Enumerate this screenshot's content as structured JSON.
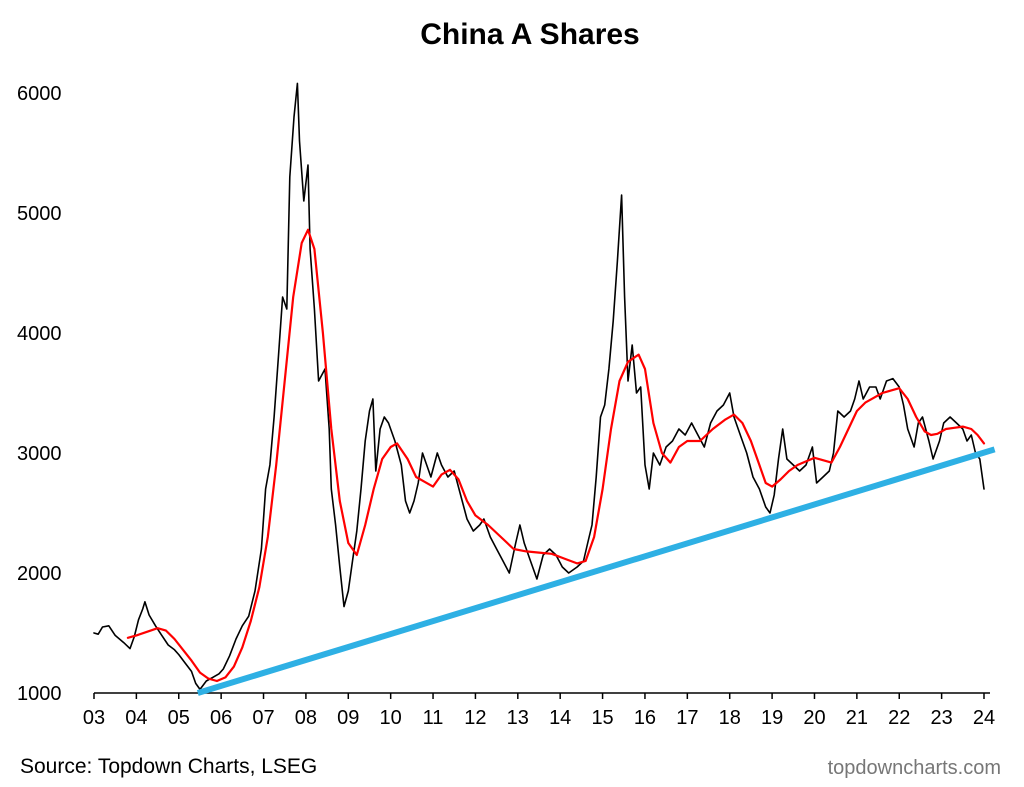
{
  "chart_data": {
    "type": "line",
    "title": "China A Shares",
    "xlabel": "",
    "ylabel": "",
    "xlim": [
      2003,
      2024
    ],
    "ylim": [
      1000,
      6000
    ],
    "x_ticks": [
      {
        "value": 2003,
        "label": "03"
      },
      {
        "value": 2004,
        "label": "04"
      },
      {
        "value": 2005,
        "label": "05"
      },
      {
        "value": 2006,
        "label": "06"
      },
      {
        "value": 2007,
        "label": "07"
      },
      {
        "value": 2008,
        "label": "08"
      },
      {
        "value": 2009,
        "label": "09"
      },
      {
        "value": 2010,
        "label": "10"
      },
      {
        "value": 2011,
        "label": "11"
      },
      {
        "value": 2012,
        "label": "12"
      },
      {
        "value": 2013,
        "label": "13"
      },
      {
        "value": 2014,
        "label": "14"
      },
      {
        "value": 2015,
        "label": "15"
      },
      {
        "value": 2016,
        "label": "16"
      },
      {
        "value": 2017,
        "label": "17"
      },
      {
        "value": 2018,
        "label": "18"
      },
      {
        "value": 2019,
        "label": "19"
      },
      {
        "value": 2020,
        "label": "20"
      },
      {
        "value": 2021,
        "label": "21"
      },
      {
        "value": 2022,
        "label": "22"
      },
      {
        "value": 2023,
        "label": "23"
      },
      {
        "value": 2024,
        "label": "24"
      }
    ],
    "y_ticks": [
      {
        "value": 1000,
        "label": "1000"
      },
      {
        "value": 2000,
        "label": "2000"
      },
      {
        "value": 3000,
        "label": "3000"
      },
      {
        "value": 4000,
        "label": "4000"
      },
      {
        "value": 5000,
        "label": "5000"
      },
      {
        "value": 6000,
        "label": "6000"
      }
    ],
    "grid": false,
    "legend": "none",
    "series": [
      {
        "color": "#000000",
        "points": [
          [
            2003.0,
            1500
          ],
          [
            2003.1,
            1490
          ],
          [
            2003.2,
            1550
          ],
          [
            2003.35,
            1560
          ],
          [
            2003.5,
            1480
          ],
          [
            2003.7,
            1420
          ],
          [
            2003.85,
            1370
          ],
          [
            2003.95,
            1470
          ],
          [
            2004.05,
            1610
          ],
          [
            2004.15,
            1700
          ],
          [
            2004.2,
            1760
          ],
          [
            2004.3,
            1650
          ],
          [
            2004.45,
            1560
          ],
          [
            2004.6,
            1480
          ],
          [
            2004.75,
            1400
          ],
          [
            2004.9,
            1360
          ],
          [
            2005.0,
            1320
          ],
          [
            2005.15,
            1250
          ],
          [
            2005.3,
            1180
          ],
          [
            2005.4,
            1080
          ],
          [
            2005.5,
            1030
          ],
          [
            2005.65,
            1100
          ],
          [
            2005.8,
            1130
          ],
          [
            2005.95,
            1160
          ],
          [
            2006.05,
            1200
          ],
          [
            2006.2,
            1310
          ],
          [
            2006.35,
            1450
          ],
          [
            2006.5,
            1560
          ],
          [
            2006.65,
            1640
          ],
          [
            2006.8,
            1850
          ],
          [
            2006.95,
            2200
          ],
          [
            2007.05,
            2700
          ],
          [
            2007.15,
            2900
          ],
          [
            2007.25,
            3300
          ],
          [
            2007.35,
            3800
          ],
          [
            2007.45,
            4300
          ],
          [
            2007.55,
            4200
          ],
          [
            2007.62,
            5300
          ],
          [
            2007.72,
            5800
          ],
          [
            2007.8,
            6080
          ],
          [
            2007.85,
            5600
          ],
          [
            2007.95,
            5100
          ],
          [
            2008.05,
            5400
          ],
          [
            2008.1,
            4700
          ],
          [
            2008.2,
            4200
          ],
          [
            2008.3,
            3600
          ],
          [
            2008.45,
            3700
          ],
          [
            2008.55,
            3200
          ],
          [
            2008.6,
            2700
          ],
          [
            2008.7,
            2400
          ],
          [
            2008.8,
            2050
          ],
          [
            2008.9,
            1720
          ],
          [
            2009.0,
            1850
          ],
          [
            2009.1,
            2100
          ],
          [
            2009.2,
            2350
          ],
          [
            2009.3,
            2700
          ],
          [
            2009.4,
            3100
          ],
          [
            2009.5,
            3350
          ],
          [
            2009.58,
            3450
          ],
          [
            2009.65,
            2850
          ],
          [
            2009.75,
            3200
          ],
          [
            2009.85,
            3300
          ],
          [
            2009.95,
            3250
          ],
          [
            2010.1,
            3100
          ],
          [
            2010.25,
            2900
          ],
          [
            2010.35,
            2600
          ],
          [
            2010.45,
            2500
          ],
          [
            2010.55,
            2600
          ],
          [
            2010.65,
            2750
          ],
          [
            2010.75,
            3000
          ],
          [
            2010.85,
            2900
          ],
          [
            2010.95,
            2800
          ],
          [
            2011.1,
            3000
          ],
          [
            2011.2,
            2900
          ],
          [
            2011.35,
            2800
          ],
          [
            2011.5,
            2850
          ],
          [
            2011.65,
            2650
          ],
          [
            2011.8,
            2450
          ],
          [
            2011.95,
            2350
          ],
          [
            2012.1,
            2400
          ],
          [
            2012.2,
            2450
          ],
          [
            2012.35,
            2300
          ],
          [
            2012.5,
            2200
          ],
          [
            2012.65,
            2100
          ],
          [
            2012.8,
            2000
          ],
          [
            2012.95,
            2250
          ],
          [
            2013.05,
            2400
          ],
          [
            2013.15,
            2250
          ],
          [
            2013.3,
            2100
          ],
          [
            2013.45,
            1950
          ],
          [
            2013.6,
            2150
          ],
          [
            2013.75,
            2200
          ],
          [
            2013.9,
            2150
          ],
          [
            2014.05,
            2050
          ],
          [
            2014.2,
            2000
          ],
          [
            2014.4,
            2050
          ],
          [
            2014.55,
            2100
          ],
          [
            2014.65,
            2250
          ],
          [
            2014.75,
            2400
          ],
          [
            2014.85,
            2800
          ],
          [
            2014.95,
            3300
          ],
          [
            2015.05,
            3400
          ],
          [
            2015.15,
            3700
          ],
          [
            2015.25,
            4100
          ],
          [
            2015.35,
            4600
          ],
          [
            2015.45,
            5150
          ],
          [
            2015.52,
            4300
          ],
          [
            2015.6,
            3600
          ],
          [
            2015.7,
            3900
          ],
          [
            2015.8,
            3500
          ],
          [
            2015.9,
            3550
          ],
          [
            2016.0,
            2900
          ],
          [
            2016.1,
            2700
          ],
          [
            2016.2,
            3000
          ],
          [
            2016.35,
            2900
          ],
          [
            2016.5,
            3050
          ],
          [
            2016.65,
            3100
          ],
          [
            2016.8,
            3200
          ],
          [
            2016.95,
            3150
          ],
          [
            2017.1,
            3250
          ],
          [
            2017.25,
            3150
          ],
          [
            2017.4,
            3050
          ],
          [
            2017.55,
            3250
          ],
          [
            2017.7,
            3350
          ],
          [
            2017.85,
            3400
          ],
          [
            2018.0,
            3500
          ],
          [
            2018.1,
            3300
          ],
          [
            2018.25,
            3150
          ],
          [
            2018.4,
            3000
          ],
          [
            2018.55,
            2800
          ],
          [
            2018.7,
            2700
          ],
          [
            2018.85,
            2550
          ],
          [
            2018.95,
            2500
          ],
          [
            2019.05,
            2650
          ],
          [
            2019.15,
            2950
          ],
          [
            2019.25,
            3200
          ],
          [
            2019.35,
            2950
          ],
          [
            2019.5,
            2900
          ],
          [
            2019.65,
            2850
          ],
          [
            2019.8,
            2900
          ],
          [
            2019.95,
            3050
          ],
          [
            2020.05,
            2750
          ],
          [
            2020.2,
            2800
          ],
          [
            2020.35,
            2850
          ],
          [
            2020.45,
            3000
          ],
          [
            2020.55,
            3350
          ],
          [
            2020.7,
            3300
          ],
          [
            2020.85,
            3350
          ],
          [
            2020.95,
            3450
          ],
          [
            2021.05,
            3600
          ],
          [
            2021.15,
            3450
          ],
          [
            2021.3,
            3550
          ],
          [
            2021.45,
            3550
          ],
          [
            2021.55,
            3450
          ],
          [
            2021.7,
            3600
          ],
          [
            2021.85,
            3620
          ],
          [
            2022.0,
            3550
          ],
          [
            2022.1,
            3400
          ],
          [
            2022.2,
            3200
          ],
          [
            2022.35,
            3050
          ],
          [
            2022.45,
            3250
          ],
          [
            2022.55,
            3300
          ],
          [
            2022.7,
            3100
          ],
          [
            2022.8,
            2950
          ],
          [
            2022.95,
            3100
          ],
          [
            2023.05,
            3250
          ],
          [
            2023.2,
            3300
          ],
          [
            2023.35,
            3250
          ],
          [
            2023.5,
            3200
          ],
          [
            2023.6,
            3100
          ],
          [
            2023.7,
            3150
          ],
          [
            2023.8,
            3000
          ],
          [
            2023.9,
            2950
          ],
          [
            2024.0,
            2700
          ]
        ]
      },
      {
        "color": "#ff0000",
        "points": [
          [
            2003.8,
            1460
          ],
          [
            2004.0,
            1480
          ],
          [
            2004.25,
            1510
          ],
          [
            2004.5,
            1540
          ],
          [
            2004.7,
            1520
          ],
          [
            2004.9,
            1450
          ],
          [
            2005.1,
            1360
          ],
          [
            2005.3,
            1270
          ],
          [
            2005.5,
            1170
          ],
          [
            2005.7,
            1120
          ],
          [
            2005.9,
            1100
          ],
          [
            2006.1,
            1130
          ],
          [
            2006.3,
            1220
          ],
          [
            2006.5,
            1380
          ],
          [
            2006.7,
            1600
          ],
          [
            2006.9,
            1880
          ],
          [
            2007.1,
            2300
          ],
          [
            2007.3,
            2900
          ],
          [
            2007.5,
            3600
          ],
          [
            2007.7,
            4300
          ],
          [
            2007.9,
            4750
          ],
          [
            2008.05,
            4860
          ],
          [
            2008.2,
            4700
          ],
          [
            2008.4,
            4000
          ],
          [
            2008.6,
            3200
          ],
          [
            2008.8,
            2600
          ],
          [
            2009.0,
            2250
          ],
          [
            2009.2,
            2150
          ],
          [
            2009.4,
            2400
          ],
          [
            2009.6,
            2700
          ],
          [
            2009.8,
            2950
          ],
          [
            2010.0,
            3050
          ],
          [
            2010.15,
            3080
          ],
          [
            2010.4,
            2950
          ],
          [
            2010.6,
            2800
          ],
          [
            2010.8,
            2760
          ],
          [
            2011.0,
            2720
          ],
          [
            2011.2,
            2820
          ],
          [
            2011.4,
            2860
          ],
          [
            2011.6,
            2780
          ],
          [
            2011.8,
            2600
          ],
          [
            2012.0,
            2480
          ],
          [
            2012.3,
            2400
          ],
          [
            2012.6,
            2300
          ],
          [
            2012.9,
            2200
          ],
          [
            2013.2,
            2180
          ],
          [
            2013.5,
            2170
          ],
          [
            2013.8,
            2160
          ],
          [
            2014.1,
            2120
          ],
          [
            2014.4,
            2080
          ],
          [
            2014.6,
            2100
          ],
          [
            2014.8,
            2300
          ],
          [
            2015.0,
            2700
          ],
          [
            2015.2,
            3200
          ],
          [
            2015.4,
            3600
          ],
          [
            2015.6,
            3760
          ],
          [
            2015.85,
            3820
          ],
          [
            2016.0,
            3700
          ],
          [
            2016.2,
            3250
          ],
          [
            2016.4,
            3000
          ],
          [
            2016.6,
            2920
          ],
          [
            2016.8,
            3050
          ],
          [
            2017.0,
            3100
          ],
          [
            2017.3,
            3100
          ],
          [
            2017.6,
            3200
          ],
          [
            2017.9,
            3280
          ],
          [
            2018.1,
            3320
          ],
          [
            2018.3,
            3250
          ],
          [
            2018.5,
            3100
          ],
          [
            2018.7,
            2900
          ],
          [
            2018.85,
            2750
          ],
          [
            2019.0,
            2720
          ],
          [
            2019.2,
            2780
          ],
          [
            2019.4,
            2850
          ],
          [
            2019.6,
            2900
          ],
          [
            2019.8,
            2930
          ],
          [
            2020.0,
            2960
          ],
          [
            2020.2,
            2940
          ],
          [
            2020.4,
            2920
          ],
          [
            2020.6,
            3050
          ],
          [
            2020.8,
            3200
          ],
          [
            2021.0,
            3350
          ],
          [
            2021.2,
            3420
          ],
          [
            2021.4,
            3460
          ],
          [
            2021.6,
            3500
          ],
          [
            2021.8,
            3520
          ],
          [
            2022.0,
            3540
          ],
          [
            2022.2,
            3450
          ],
          [
            2022.4,
            3300
          ],
          [
            2022.6,
            3180
          ],
          [
            2022.75,
            3150
          ],
          [
            2022.9,
            3160
          ],
          [
            2023.1,
            3200
          ],
          [
            2023.3,
            3210
          ],
          [
            2023.5,
            3220
          ],
          [
            2023.7,
            3200
          ],
          [
            2023.85,
            3150
          ],
          [
            2024.0,
            3080
          ]
        ]
      },
      {
        "color": "#2eb0e4",
        "points": [
          [
            2005.45,
            1000
          ],
          [
            2024.25,
            3030
          ]
        ]
      }
    ]
  },
  "footer": {
    "source": "Source: Topdown Charts, LSEG",
    "brand": "topdowncharts.com"
  }
}
